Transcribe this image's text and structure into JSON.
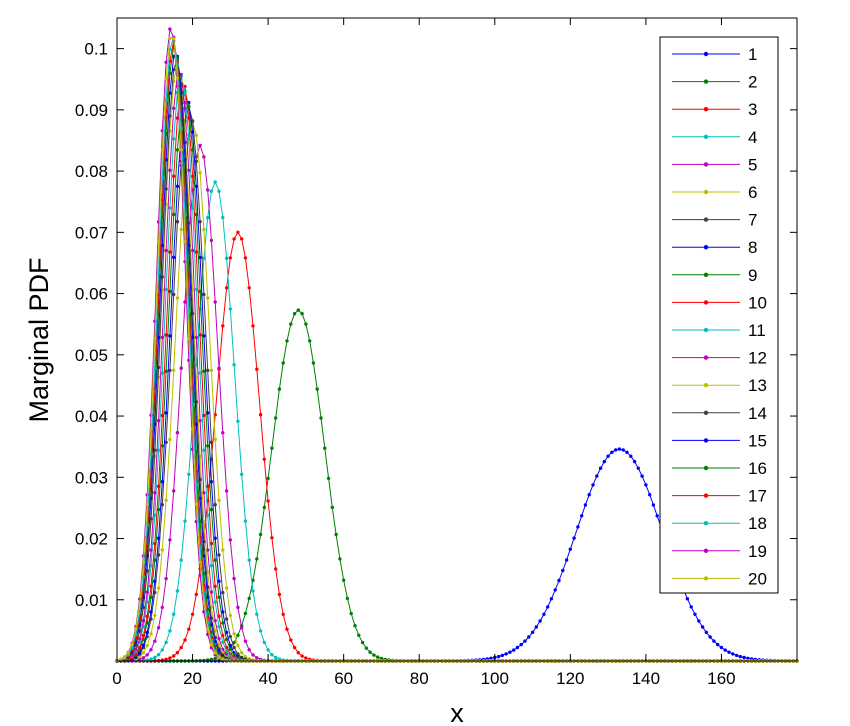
{
  "chart_data": {
    "type": "line",
    "xlabel": "x",
    "ylabel": "Marginal PDF",
    "xlim": [
      0,
      180
    ],
    "ylim": [
      0,
      0.105
    ],
    "xticks": [
      "0",
      "20",
      "40",
      "60",
      "80",
      "100",
      "120",
      "140",
      "160"
    ],
    "yticks": [
      "0.01",
      "0.02",
      "0.03",
      "0.04",
      "0.05",
      "0.06",
      "0.07",
      "0.08",
      "0.09",
      "0.1"
    ],
    "grid": false,
    "legend_position": "top-right",
    "marker": "dot",
    "x_sampling": {
      "start": 0,
      "end": 180,
      "step": 1
    },
    "series_shape": "gaussian peak; values listed as peak location (x) and peak height",
    "series": [
      {
        "name": "1",
        "color": "#0000ff",
        "peak_x": 133,
        "peak_y": 0.0346,
        "sigma": 11.5
      },
      {
        "name": "2",
        "color": "#008000",
        "peak_x": 48,
        "peak_y": 0.0573,
        "sigma": 7.0
      },
      {
        "name": "3",
        "color": "#ff0000",
        "peak_x": 32,
        "peak_y": 0.07,
        "sigma": 5.7
      },
      {
        "name": "4",
        "color": "#00bfbf",
        "peak_x": 26,
        "peak_y": 0.0782,
        "sigma": 5.1
      },
      {
        "name": "5",
        "color": "#bf00bf",
        "peak_x": 22,
        "peak_y": 0.0842,
        "sigma": 4.7
      },
      {
        "name": "6",
        "color": "#bfbf00",
        "peak_x": 20,
        "peak_y": 0.088,
        "sigma": 4.5
      },
      {
        "name": "7",
        "color": "#404040",
        "peak_x": 19,
        "peak_y": 0.0905,
        "sigma": 4.4
      },
      {
        "name": "8",
        "color": "#0000ff",
        "peak_x": 18.5,
        "peak_y": 0.0918,
        "sigma": 4.3
      },
      {
        "name": "9",
        "color": "#008000",
        "peak_x": 18,
        "peak_y": 0.093,
        "sigma": 4.3
      },
      {
        "name": "10",
        "color": "#ff0000",
        "peak_x": 17.5,
        "peak_y": 0.0945,
        "sigma": 4.2
      },
      {
        "name": "11",
        "color": "#00bfbf",
        "peak_x": 17,
        "peak_y": 0.0955,
        "sigma": 4.2
      },
      {
        "name": "12",
        "color": "#bf00bf",
        "peak_x": 16.5,
        "peak_y": 0.0965,
        "sigma": 4.1
      },
      {
        "name": "13",
        "color": "#bfbf00",
        "peak_x": 16,
        "peak_y": 0.0975,
        "sigma": 4.1
      },
      {
        "name": "14",
        "color": "#404040",
        "peak_x": 15.8,
        "peak_y": 0.0985,
        "sigma": 4.0
      },
      {
        "name": "15",
        "color": "#0000ff",
        "peak_x": 15.5,
        "peak_y": 0.0995,
        "sigma": 4.0
      },
      {
        "name": "16",
        "color": "#008000",
        "peak_x": 15.2,
        "peak_y": 0.1005,
        "sigma": 3.95
      },
      {
        "name": "17",
        "color": "#ff0000",
        "peak_x": 15,
        "peak_y": 0.1012,
        "sigma": 3.9
      },
      {
        "name": "18",
        "color": "#00bfbf",
        "peak_x": 14.8,
        "peak_y": 0.102,
        "sigma": 3.9
      },
      {
        "name": "19",
        "color": "#bf00bf",
        "peak_x": 14.3,
        "peak_y": 0.1035,
        "sigma": 3.85
      },
      {
        "name": "20",
        "color": "#bfbf00",
        "peak_x": 14.5,
        "peak_y": 0.1025,
        "sigma": 3.9
      }
    ]
  }
}
